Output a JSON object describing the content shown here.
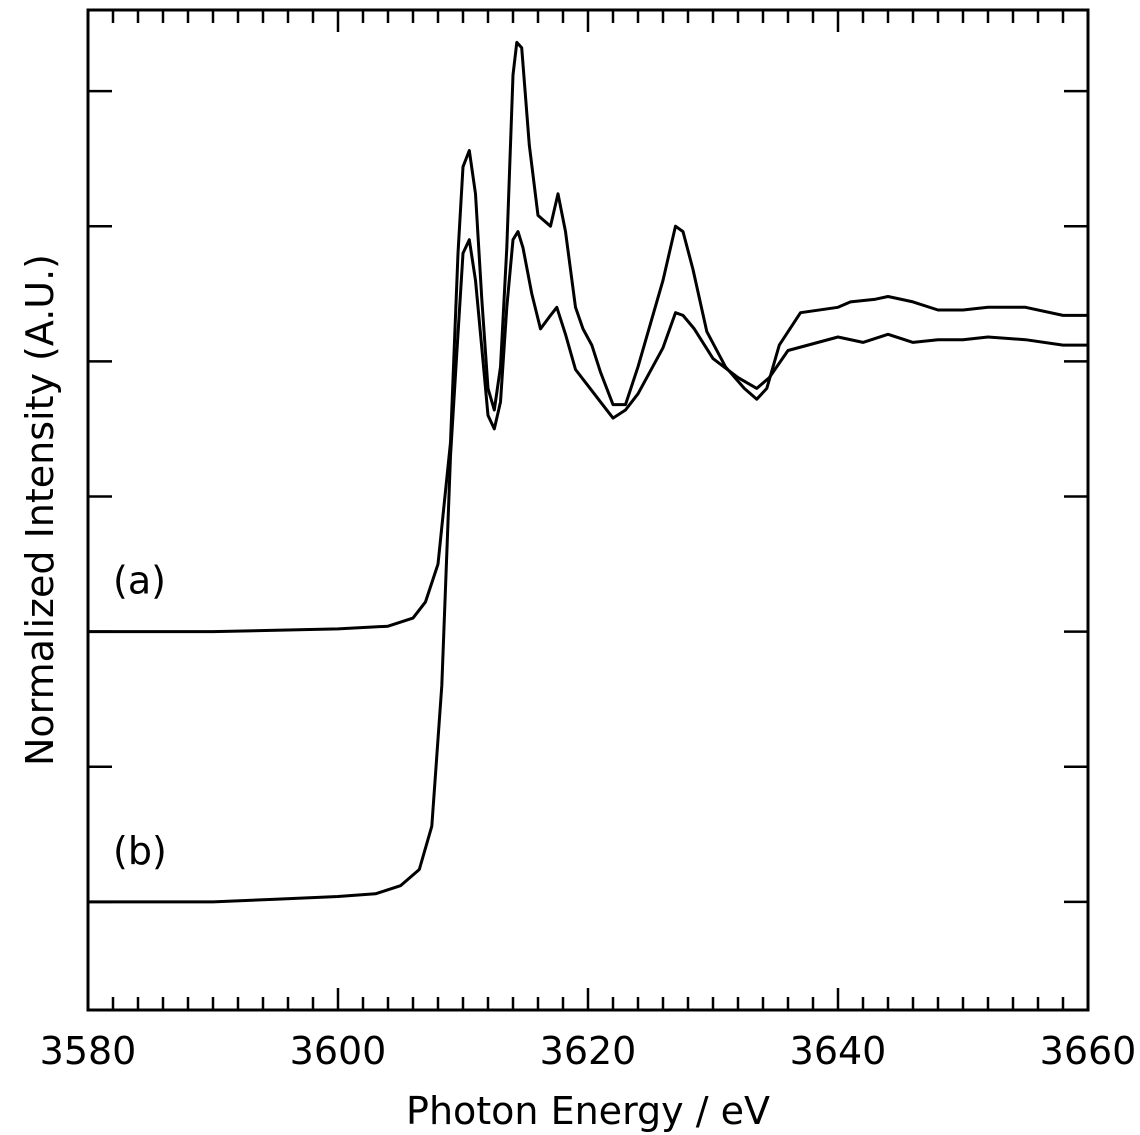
{
  "chart_data": {
    "type": "line",
    "xlabel": "Photon Energy / eV",
    "ylabel": "Normalized Intensity (A.U.)",
    "xlim": [
      3580,
      3660
    ],
    "x_ticks": [
      3580,
      3600,
      3620,
      3640,
      3660
    ],
    "x_minor_step": 2,
    "ylim": [
      -0.4,
      3.3
    ],
    "y_major_ticks": [
      0,
      0.5,
      1,
      1.5,
      2,
      2.5,
      3
    ],
    "y_ticks_show_labels": false,
    "grid": false,
    "legend": "none",
    "series": [
      {
        "name": "(a)",
        "x": [
          3580,
          3590,
          3600,
          3604,
          3606,
          3607,
          3608,
          3609,
          3609.6,
          3610,
          3610.5,
          3611,
          3611.5,
          3612,
          3612.5,
          3613,
          3613.5,
          3614,
          3614.3,
          3614.7,
          3615.3,
          3616,
          3617,
          3617.6,
          3618.2,
          3619,
          3619.6,
          3620.3,
          3621,
          3622,
          3623,
          3624,
          3626,
          3627,
          3627.6,
          3628.4,
          3629.5,
          3631,
          3632.5,
          3633.5,
          3634.3,
          3635.3,
          3637,
          3640,
          3641,
          3643,
          3644,
          3646,
          3648,
          3650,
          3652,
          3655,
          3658,
          3660
        ],
        "y": [
          1.0,
          1.0,
          1.01,
          1.02,
          1.05,
          1.11,
          1.25,
          1.7,
          2.4,
          2.72,
          2.78,
          2.62,
          2.23,
          1.9,
          1.82,
          1.98,
          2.42,
          3.06,
          3.18,
          3.16,
          2.8,
          2.54,
          2.5,
          2.62,
          2.48,
          2.2,
          2.12,
          2.06,
          1.96,
          1.84,
          1.84,
          1.98,
          2.3,
          2.5,
          2.48,
          2.34,
          2.11,
          1.98,
          1.9,
          1.86,
          1.9,
          2.06,
          2.18,
          2.2,
          2.22,
          2.23,
          2.24,
          2.22,
          2.19,
          2.19,
          2.2,
          2.2,
          2.17,
          2.17
        ]
      },
      {
        "name": "(b)",
        "x": [
          3580,
          3590,
          3595,
          3600,
          3603,
          3605,
          3606.5,
          3607.5,
          3608.3,
          3609,
          3609.5,
          3610,
          3610.5,
          3611,
          3611.5,
          3612,
          3612.5,
          3613,
          3613.5,
          3614,
          3614.4,
          3614.8,
          3615.5,
          3616.2,
          3617,
          3617.5,
          3618.2,
          3619,
          3620,
          3621,
          3622,
          3623,
          3624,
          3626,
          3627,
          3627.6,
          3628.5,
          3630,
          3632,
          3633.5,
          3634.5,
          3636,
          3640,
          3642,
          3644,
          3646,
          3648,
          3650,
          3652,
          3655,
          3658,
          3660
        ],
        "y": [
          0.0,
          0.0,
          0.01,
          0.02,
          0.03,
          0.06,
          0.12,
          0.28,
          0.8,
          1.65,
          2.03,
          2.4,
          2.45,
          2.3,
          2.05,
          1.8,
          1.75,
          1.85,
          2.2,
          2.45,
          2.48,
          2.42,
          2.25,
          2.12,
          2.17,
          2.2,
          2.1,
          1.97,
          1.91,
          1.85,
          1.79,
          1.82,
          1.88,
          2.05,
          2.18,
          2.17,
          2.12,
          2.01,
          1.94,
          1.9,
          1.94,
          2.04,
          2.09,
          2.07,
          2.1,
          2.07,
          2.08,
          2.08,
          2.09,
          2.08,
          2.06,
          2.06
        ]
      }
    ]
  }
}
